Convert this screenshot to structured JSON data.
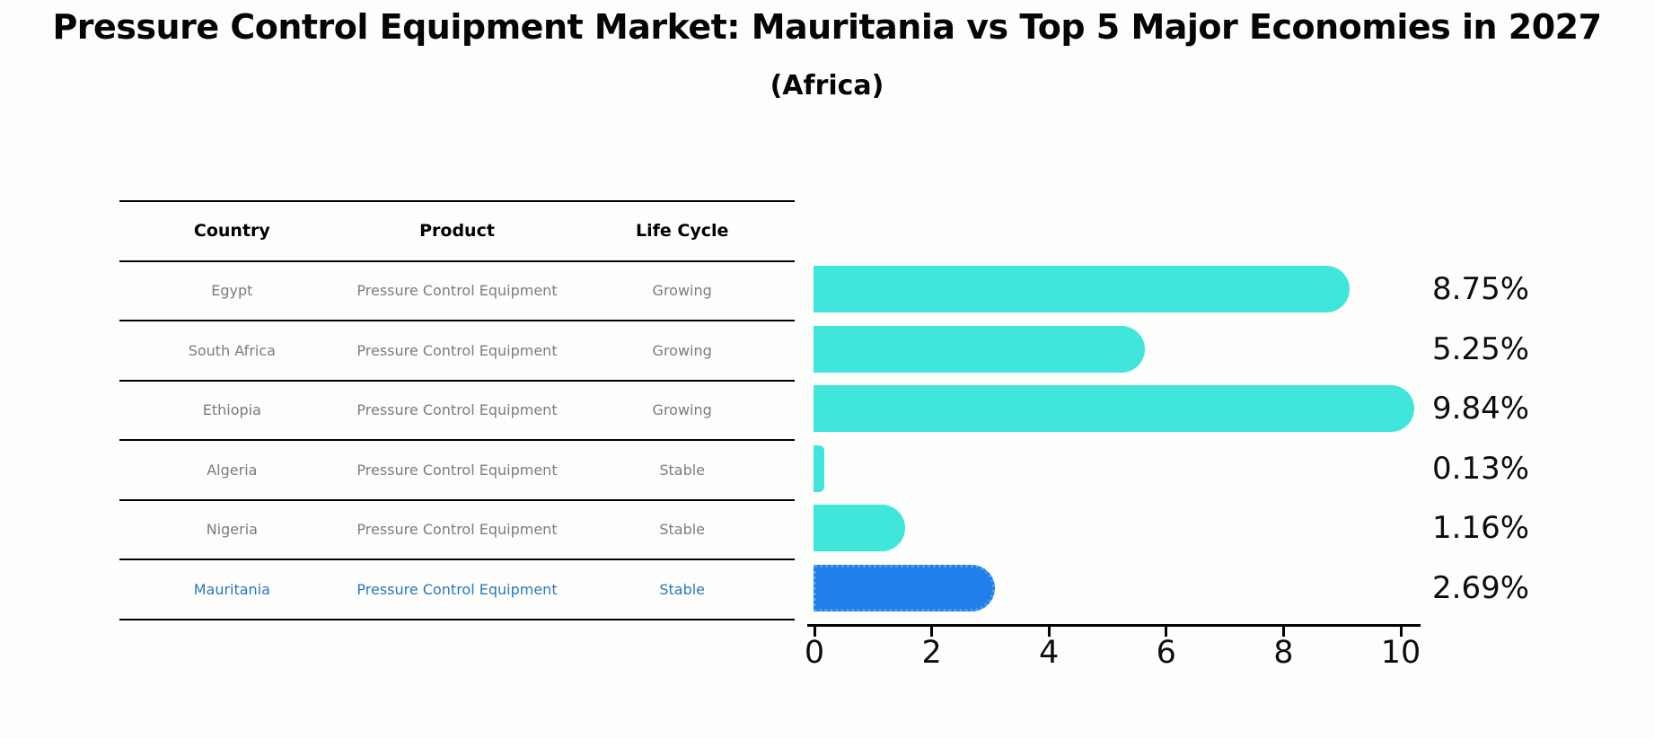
{
  "title": "Pressure Control Equipment Market: Mauritania vs Top 5 Major Economies in 2027",
  "subtitle": "(Africa)",
  "table": {
    "headers": [
      "Country",
      "Product",
      "Life Cycle"
    ],
    "rows": [
      {
        "country": "Egypt",
        "product": "Pressure Control Equipment",
        "life_cycle": "Growing",
        "highlighted": false
      },
      {
        "country": "South Africa",
        "product": "Pressure Control Equipment",
        "life_cycle": "Growing",
        "highlighted": false
      },
      {
        "country": "Ethiopia",
        "product": "Pressure Control Equipment",
        "life_cycle": "Growing",
        "highlighted": false
      },
      {
        "country": "Algeria",
        "product": "Pressure Control Equipment",
        "life_cycle": "Stable",
        "highlighted": false
      },
      {
        "country": "Nigeria",
        "product": "Pressure Control Equipment",
        "life_cycle": "Stable",
        "highlighted": false
      },
      {
        "country": "Mauritania",
        "product": "Pressure Control Equipment",
        "life_cycle": "Stable",
        "highlighted": true
      }
    ]
  },
  "chart_data": {
    "type": "bar",
    "orientation": "horizontal",
    "categories": [
      "Egypt",
      "South Africa",
      "Ethiopia",
      "Algeria",
      "Nigeria",
      "Mauritania"
    ],
    "values": [
      8.75,
      5.25,
      9.84,
      0.13,
      1.16,
      2.69
    ],
    "value_labels": [
      "8.75%",
      "5.25%",
      "9.84%",
      "0.13%",
      "1.16%",
      "2.69%"
    ],
    "title": "Pressure Control Equipment Market: Mauritania vs Top 5 Major Economies in 2027 (Africa)",
    "xlabel": "",
    "ylabel": "",
    "xlim": [
      0,
      10.35
    ],
    "xticks": [
      0,
      2,
      4,
      6,
      8,
      10
    ],
    "grid": false,
    "legend": "none",
    "bar_color": "#40e5dc",
    "highlight_color": "#1e80e8",
    "highlight_index": 5,
    "highlight_text_color": "#2878be"
  }
}
